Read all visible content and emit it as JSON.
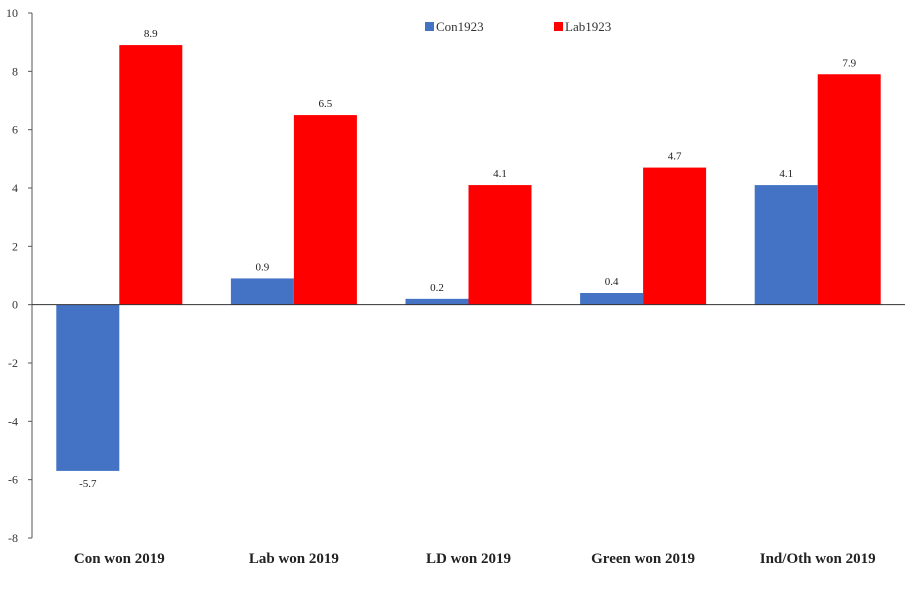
{
  "chart_data": {
    "type": "bar",
    "title": "",
    "xlabel": "",
    "ylabel": "",
    "categories": [
      "Con won 2019",
      "Lab won 2019",
      "LD won 2019",
      "Green won 2019",
      "Ind/Oth won 2019"
    ],
    "series": [
      {
        "name": "Con1923",
        "color": "#4472C4",
        "values": [
          -5.7,
          0.9,
          0.2,
          0.4,
          4.1
        ]
      },
      {
        "name": "Lab1923",
        "color": "#FF0000",
        "values": [
          8.9,
          6.5,
          4.1,
          4.7,
          7.9
        ]
      }
    ],
    "ylim": [
      -8,
      10
    ],
    "yticks": [
      -8,
      -6,
      -4,
      -2,
      0,
      2,
      4,
      6,
      8,
      10
    ],
    "grid": false,
    "legend_position": "top-center",
    "data_labels": true
  }
}
